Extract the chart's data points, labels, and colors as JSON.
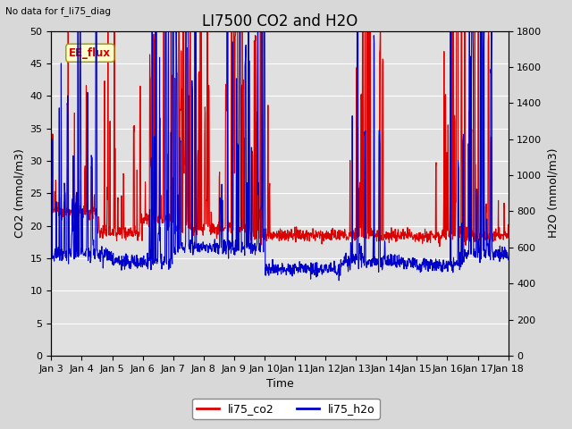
{
  "title": "LI7500 CO2 and H2O",
  "top_left_text": "No data for f_li75_diag",
  "xlabel": "Time",
  "ylabel_left": "CO2 (mmol/m3)",
  "ylabel_right": "H2O (mmol/m3)",
  "ylim_left": [
    0,
    50
  ],
  "ylim_right": [
    0,
    1800
  ],
  "yticks_left": [
    0,
    5,
    10,
    15,
    20,
    25,
    30,
    35,
    40,
    45,
    50
  ],
  "yticks_right": [
    0,
    200,
    400,
    600,
    800,
    1000,
    1200,
    1400,
    1600,
    1800
  ],
  "xtick_labels": [
    "Jan 3",
    "Jan 4",
    "Jan 5",
    "Jan 6",
    "Jan 7",
    "Jan 8",
    "Jan 9",
    "Jan 10",
    "Jan 11",
    "Jan 12",
    "Jan 13",
    "Jan 14",
    "Jan 15",
    "Jan 16",
    "Jan 17",
    "Jan 18"
  ],
  "co2_color": "#dd0000",
  "h2o_color": "#0000cc",
  "fig_facecolor": "#d8d8d8",
  "plot_bg_color": "#e0e0e0",
  "ee_flux_label": "EE_flux",
  "ee_flux_bg": "#ffffcc",
  "ee_flux_border": "#999900",
  "legend_co2": "li75_co2",
  "legend_h2o": "li75_h2o",
  "title_fontsize": 12,
  "axis_label_fontsize": 9,
  "tick_fontsize": 8,
  "line_width": 0.8,
  "figsize": [
    6.4,
    4.8
  ],
  "dpi": 100
}
